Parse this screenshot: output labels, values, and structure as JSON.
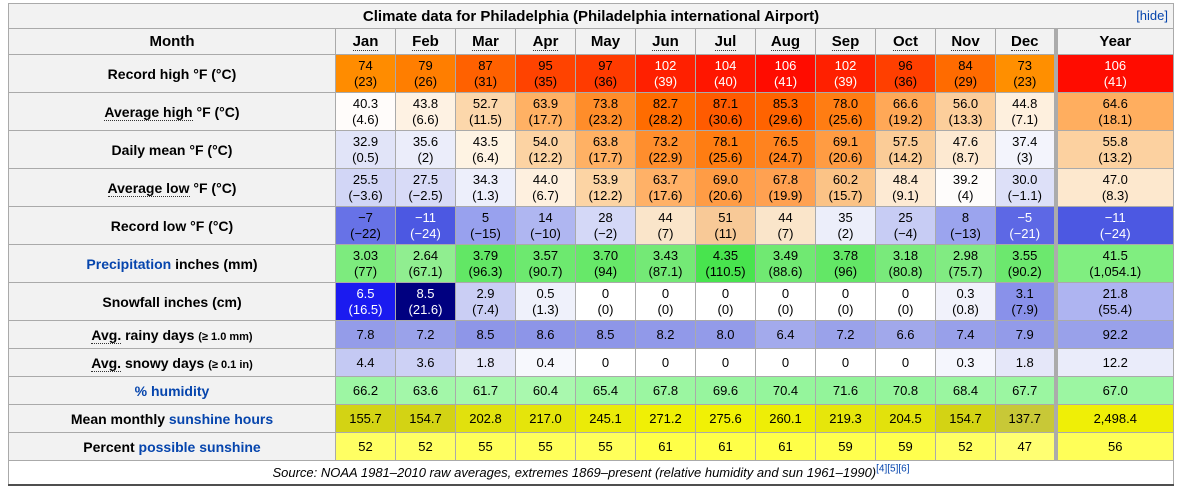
{
  "title": "Climate data for Philadelphia (Philadelphia international Airport)",
  "hide_label": "[hide]",
  "header": {
    "month_label": "Month",
    "year_label": "Year",
    "months": [
      {
        "label": "Jan",
        "abbr": true
      },
      {
        "label": "Feb",
        "abbr": true
      },
      {
        "label": "Mar",
        "abbr": true
      },
      {
        "label": "Apr",
        "abbr": true
      },
      {
        "label": "May",
        "abbr": false
      },
      {
        "label": "Jun",
        "abbr": true
      },
      {
        "label": "Jul",
        "abbr": true
      },
      {
        "label": "Aug",
        "abbr": true
      },
      {
        "label": "Sep",
        "abbr": true
      },
      {
        "label": "Oct",
        "abbr": true
      },
      {
        "label": "Nov",
        "abbr": true
      },
      {
        "label": "Dec",
        "abbr": true
      }
    ]
  },
  "rows": [
    {
      "name": "record-high",
      "label": [
        {
          "t": "Record high °F (°C)"
        }
      ],
      "cells": [
        {
          "v": "74",
          "s": "(23)",
          "bg": "#FF8C00"
        },
        {
          "v": "79",
          "s": "(26)",
          "bg": "#FF7E00"
        },
        {
          "v": "87",
          "s": "(31)",
          "bg": "#FF6100"
        },
        {
          "v": "95",
          "s": "(35)",
          "bg": "#FF4300"
        },
        {
          "v": "97",
          "s": "(36)",
          "bg": "#FF3B00"
        },
        {
          "v": "102",
          "s": "(39)",
          "bg": "#FF2000",
          "fg": "#FFFFFF"
        },
        {
          "v": "104",
          "s": "(40)",
          "bg": "#FF1600",
          "fg": "#FFFFFF"
        },
        {
          "v": "106",
          "s": "(41)",
          "bg": "#FF0C00",
          "fg": "#FFFFFF"
        },
        {
          "v": "102",
          "s": "(39)",
          "bg": "#FF2000",
          "fg": "#FFFFFF"
        },
        {
          "v": "96",
          "s": "(36)",
          "bg": "#FF3F00"
        },
        {
          "v": "84",
          "s": "(29)",
          "bg": "#FF6B00"
        },
        {
          "v": "73",
          "s": "(23)",
          "bg": "#FF8F00"
        },
        {
          "v": "106",
          "s": "(41)",
          "bg": "#FF0C00",
          "fg": "#FFFFFF"
        }
      ]
    },
    {
      "name": "average-high",
      "label": [
        {
          "t": "Average high",
          "k": "abbr"
        },
        {
          "t": " °F (°C)"
        }
      ],
      "cells": [
        {
          "v": "40.3",
          "s": "(4.6)",
          "bg": "#FFFCFA"
        },
        {
          "v": "43.8",
          "s": "(6.6)",
          "bg": "#FEF2E3"
        },
        {
          "v": "52.7",
          "s": "(11.5)",
          "bg": "#FCD7AB"
        },
        {
          "v": "63.9",
          "s": "(17.7)",
          "bg": "#FFB164"
        },
        {
          "v": "73.8",
          "s": "(23.2)",
          "bg": "#FF8D2A"
        },
        {
          "v": "82.7",
          "s": "(28.2)",
          "bg": "#FF6C00"
        },
        {
          "v": "87.1",
          "s": "(30.6)",
          "bg": "#FF5B00"
        },
        {
          "v": "85.3",
          "s": "(29.6)",
          "bg": "#FF6300"
        },
        {
          "v": "78.0",
          "s": "(25.6)",
          "bg": "#FF7D13"
        },
        {
          "v": "66.6",
          "s": "(19.2)",
          "bg": "#FFA857"
        },
        {
          "v": "56.0",
          "s": "(13.3)",
          "bg": "#FCCE9B"
        },
        {
          "v": "44.8",
          "s": "(7.1)",
          "bg": "#FEF0DE"
        },
        {
          "v": "64.6",
          "s": "(18.1)",
          "bg": "#FFAE5F"
        }
      ]
    },
    {
      "name": "daily-mean",
      "label": [
        {
          "t": "Daily mean °F (°C)"
        }
      ],
      "cells": [
        {
          "v": "32.9",
          "s": "(0.5)",
          "bg": "#E1E4F8"
        },
        {
          "v": "35.6",
          "s": "(2)",
          "bg": "#EBEDFA"
        },
        {
          "v": "43.5",
          "s": "(6.4)",
          "bg": "#FEF3E3"
        },
        {
          "v": "54.0",
          "s": "(12.2)",
          "bg": "#FCD3A3"
        },
        {
          "v": "63.8",
          "s": "(17.7)",
          "bg": "#FFB164"
        },
        {
          "v": "73.2",
          "s": "(22.9)",
          "bg": "#FF8E2D"
        },
        {
          "v": "78.1",
          "s": "(25.6)",
          "bg": "#FF7D12"
        },
        {
          "v": "76.5",
          "s": "(24.7)",
          "bg": "#FF831F"
        },
        {
          "v": "69.1",
          "s": "(20.6)",
          "bg": "#FF9C43"
        },
        {
          "v": "57.5",
          "s": "(14.2)",
          "bg": "#FBCC97"
        },
        {
          "v": "47.6",
          "s": "(8.7)",
          "bg": "#FDE9D1"
        },
        {
          "v": "37.4",
          "s": "(3)",
          "bg": "#F3F4FC"
        },
        {
          "v": "55.8",
          "s": "(13.2)",
          "bg": "#FCD1A0"
        }
      ]
    },
    {
      "name": "average-low",
      "label": [
        {
          "t": "Average low",
          "k": "abbr"
        },
        {
          "t": " °F (°C)"
        }
      ],
      "cells": [
        {
          "v": "25.5",
          "s": "(−3.6)",
          "bg": "#D2D6F6"
        },
        {
          "v": "27.5",
          "s": "(−2.5)",
          "bg": "#D8DBF7"
        },
        {
          "v": "34.3",
          "s": "(1.3)",
          "bg": "#EDEFFB"
        },
        {
          "v": "44.0",
          "s": "(6.7)",
          "bg": "#FEF0DF"
        },
        {
          "v": "53.9",
          "s": "(12.2)",
          "bg": "#FCD4A4"
        },
        {
          "v": "63.7",
          "s": "(17.6)",
          "bg": "#FFB167"
        },
        {
          "v": "69.0",
          "s": "(20.6)",
          "bg": "#FF9C45"
        },
        {
          "v": "67.8",
          "s": "(19.9)",
          "bg": "#FFA151"
        },
        {
          "v": "60.2",
          "s": "(15.7)",
          "bg": "#FBC386"
        },
        {
          "v": "48.4",
          "s": "(9.1)",
          "bg": "#FDEAD3"
        },
        {
          "v": "39.2",
          "s": "(4)",
          "bg": "#FEFCFB"
        },
        {
          "v": "30.0",
          "s": "(−1.1)",
          "bg": "#DDE0F8"
        },
        {
          "v": "47.0",
          "s": "(8.3)",
          "bg": "#FDE8CE"
        }
      ]
    },
    {
      "name": "record-low",
      "label": [
        {
          "t": "Record low °F (°C)"
        }
      ],
      "cells": [
        {
          "v": "−7",
          "s": "(−22)",
          "bg": "#6772E7"
        },
        {
          "v": "−11",
          "s": "(−24)",
          "bg": "#4C58E2",
          "fg": "#FFFFFF"
        },
        {
          "v": "5",
          "s": "(−15)",
          "bg": "#98A1EE"
        },
        {
          "v": "14",
          "s": "(−10)",
          "bg": "#AFB6F1"
        },
        {
          "v": "28",
          "s": "(−2)",
          "bg": "#D4D8F7"
        },
        {
          "v": "44",
          "s": "(7)",
          "bg": "#FAE5CA"
        },
        {
          "v": "51",
          "s": "(11)",
          "bg": "#F8C997"
        },
        {
          "v": "44",
          "s": "(7)",
          "bg": "#FAE5CA"
        },
        {
          "v": "35",
          "s": "(2)",
          "bg": "#ECEEFA"
        },
        {
          "v": "25",
          "s": "(−4)",
          "bg": "#C7CCF4"
        },
        {
          "v": "8",
          "s": "(−13)",
          "bg": "#9BA4EE"
        },
        {
          "v": "−5",
          "s": "(−21)",
          "bg": "#5D68E5",
          "fg": "#FFFFFF"
        },
        {
          "v": "−11",
          "s": "(−24)",
          "bg": "#4C58E2",
          "fg": "#FFFFFF"
        }
      ]
    },
    {
      "name": "precipitation",
      "label": [
        {
          "t": "Precipitation",
          "k": "link"
        },
        {
          "t": " inches (mm)"
        }
      ],
      "cells": [
        {
          "v": "3.03",
          "s": "(77)",
          "bg": "#7DEB7E"
        },
        {
          "v": "2.64",
          "s": "(67.1)",
          "bg": "#90EE90"
        },
        {
          "v": "3.79",
          "s": "(96.3)",
          "bg": "#62E765"
        },
        {
          "v": "3.57",
          "s": "(90.7)",
          "bg": "#6DE96F"
        },
        {
          "v": "3.70",
          "s": "(94)",
          "bg": "#67E869"
        },
        {
          "v": "3.43",
          "s": "(87.1)",
          "bg": "#74E976"
        },
        {
          "v": "4.35",
          "s": "(110.5)",
          "bg": "#48E44E"
        },
        {
          "v": "3.49",
          "s": "(88.6)",
          "bg": "#70E972"
        },
        {
          "v": "3.78",
          "s": "(96)",
          "bg": "#63E766"
        },
        {
          "v": "3.18",
          "s": "(80.8)",
          "bg": "#79EA7B"
        },
        {
          "v": "2.98",
          "s": "(75.7)",
          "bg": "#81EB82"
        },
        {
          "v": "3.55",
          "s": "(90.2)",
          "bg": "#6CE86E"
        },
        {
          "v": "41.5",
          "s": "(1,054.1)",
          "bg": "#80EE80"
        }
      ]
    },
    {
      "name": "snowfall",
      "label": [
        {
          "t": "Snowfall inches (cm)"
        }
      ],
      "cells": [
        {
          "v": "6.5",
          "s": "(16.5)",
          "bg": "#1B1BF0",
          "fg": "#FFFFFF"
        },
        {
          "v": "8.5",
          "s": "(21.6)",
          "bg": "#000080",
          "fg": "#FFFFFF"
        },
        {
          "v": "2.9",
          "s": "(7.4)",
          "bg": "#CACEF4"
        },
        {
          "v": "0.5",
          "s": "(1.3)",
          "bg": "#EFF1FB"
        },
        {
          "v": "0",
          "s": "(0)",
          "bg": "#FFFFFF"
        },
        {
          "v": "0",
          "s": "(0)",
          "bg": "#FFFFFF"
        },
        {
          "v": "0",
          "s": "(0)",
          "bg": "#FFFFFF"
        },
        {
          "v": "0",
          "s": "(0)",
          "bg": "#FFFFFF"
        },
        {
          "v": "0",
          "s": "(0)",
          "bg": "#FFFFFF"
        },
        {
          "v": "0",
          "s": "(0)",
          "bg": "#FFFFFF"
        },
        {
          "v": "0.3",
          "s": "(0.8)",
          "bg": "#F1F2FB"
        },
        {
          "v": "3.1",
          "s": "(7.9)",
          "bg": "#8991EA"
        },
        {
          "v": "21.8",
          "s": "(55.4)",
          "bg": "#AEB4F1"
        }
      ]
    },
    {
      "name": "rainy-days",
      "label": [
        {
          "t": "Avg.",
          "k": "abbr"
        },
        {
          "t": " rainy days "
        },
        {
          "t": "(≥ 1.0 mm)",
          "k": "small"
        }
      ],
      "cells": [
        {
          "v": "7.8",
          "bg": "#949CE9"
        },
        {
          "v": "7.2",
          "bg": "#9AA2EA"
        },
        {
          "v": "8.5",
          "bg": "#8E96E8"
        },
        {
          "v": "8.6",
          "bg": "#8D95E8"
        },
        {
          "v": "8.5",
          "bg": "#8E96E8"
        },
        {
          "v": "8.2",
          "bg": "#9199E9"
        },
        {
          "v": "8.0",
          "bg": "#939BE9"
        },
        {
          "v": "6.4",
          "bg": "#A3AAEC"
        },
        {
          "v": "7.2",
          "bg": "#9AA2EA"
        },
        {
          "v": "6.6",
          "bg": "#A1A8EB"
        },
        {
          "v": "7.4",
          "bg": "#98A0EA"
        },
        {
          "v": "7.9",
          "bg": "#939BE9"
        },
        {
          "v": "92.2",
          "bg": "#99A1EA"
        }
      ]
    },
    {
      "name": "snowy-days",
      "label": [
        {
          "t": "Avg.",
          "k": "abbr"
        },
        {
          "t": " snowy days "
        },
        {
          "t": "(≥ 0.1 in)",
          "k": "small"
        }
      ],
      "cells": [
        {
          "v": "4.4",
          "bg": "#C4C9F3"
        },
        {
          "v": "3.6",
          "bg": "#CDD1F5"
        },
        {
          "v": "1.8",
          "bg": "#E5E7F9"
        },
        {
          "v": "0.4",
          "bg": "#F7F8FD"
        },
        {
          "v": "0",
          "bg": "#FFFFFF"
        },
        {
          "v": "0",
          "bg": "#FFFFFF"
        },
        {
          "v": "0",
          "bg": "#FFFFFF"
        },
        {
          "v": "0",
          "bg": "#FFFFFF"
        },
        {
          "v": "0",
          "bg": "#FFFFFF"
        },
        {
          "v": "0",
          "bg": "#FFFFFF"
        },
        {
          "v": "0.3",
          "bg": "#F5F6FD"
        },
        {
          "v": "1.8",
          "bg": "#E5E7F9"
        },
        {
          "v": "12.2",
          "bg": "#EAECFA"
        }
      ]
    },
    {
      "name": "humidity",
      "label": [
        {
          "t": "% humidity",
          "k": "link"
        }
      ],
      "cells": [
        {
          "v": "66.2",
          "bg": "#9DF6A3"
        },
        {
          "v": "63.6",
          "bg": "#A3F7A9"
        },
        {
          "v": "61.7",
          "bg": "#A6F8AB"
        },
        {
          "v": "60.4",
          "bg": "#A9F8AE"
        },
        {
          "v": "65.4",
          "bg": "#9FF7A5"
        },
        {
          "v": "67.8",
          "bg": "#9BF6A1"
        },
        {
          "v": "69.6",
          "bg": "#97F59E"
        },
        {
          "v": "70.4",
          "bg": "#95F59C"
        },
        {
          "v": "71.6",
          "bg": "#93F49A"
        },
        {
          "v": "70.8",
          "bg": "#95F59C"
        },
        {
          "v": "68.4",
          "bg": "#9AF6A0"
        },
        {
          "v": "67.7",
          "bg": "#9BF6A1"
        },
        {
          "v": "67.0",
          "bg": "#9CF6A2"
        }
      ]
    },
    {
      "name": "sunshine-hours",
      "label": [
        {
          "t": "Mean monthly "
        },
        {
          "t": "sunshine hours",
          "k": "link"
        }
      ],
      "cells": [
        {
          "v": "155.7",
          "bg": "#D3D314"
        },
        {
          "v": "154.7",
          "bg": "#D3D314"
        },
        {
          "v": "202.8",
          "bg": "#E1E10D"
        },
        {
          "v": "217.0",
          "bg": "#E5E50B"
        },
        {
          "v": "245.1",
          "bg": "#EBEB08"
        },
        {
          "v": "271.2",
          "bg": "#F0F005"
        },
        {
          "v": "275.6",
          "bg": "#F1F105"
        },
        {
          "v": "260.1",
          "bg": "#EEEE06"
        },
        {
          "v": "219.3",
          "bg": "#E6E60B"
        },
        {
          "v": "204.5",
          "bg": "#E2E20C"
        },
        {
          "v": "154.7",
          "bg": "#D3D314"
        },
        {
          "v": "137.7",
          "bg": "#C8C837"
        },
        {
          "v": "2,498.4",
          "bg": "#EFEF06"
        }
      ]
    },
    {
      "name": "possible-sunshine",
      "label": [
        {
          "t": "Percent "
        },
        {
          "t": "possible sunshine",
          "k": "link"
        }
      ],
      "cells": [
        {
          "v": "52",
          "bg": "#FFFF63"
        },
        {
          "v": "52",
          "bg": "#FFFF63"
        },
        {
          "v": "55",
          "bg": "#FFFF5A"
        },
        {
          "v": "55",
          "bg": "#FFFF5A"
        },
        {
          "v": "55",
          "bg": "#FFFF5A"
        },
        {
          "v": "61",
          "bg": "#FFFF48"
        },
        {
          "v": "61",
          "bg": "#FFFF48"
        },
        {
          "v": "61",
          "bg": "#FFFF48"
        },
        {
          "v": "59",
          "bg": "#FFFF4E"
        },
        {
          "v": "59",
          "bg": "#FFFF4E"
        },
        {
          "v": "52",
          "bg": "#FFFF63"
        },
        {
          "v": "47",
          "bg": "#FFFF72"
        },
        {
          "v": "56",
          "bg": "#FFFF58"
        }
      ]
    }
  ],
  "footer": {
    "source_text": "Source: NOAA 1981–2010 raw averages, extremes 1869–present (relative humidity and sun 1961–1990)",
    "refs": [
      "[4]",
      "[5]",
      "[6]"
    ]
  }
}
